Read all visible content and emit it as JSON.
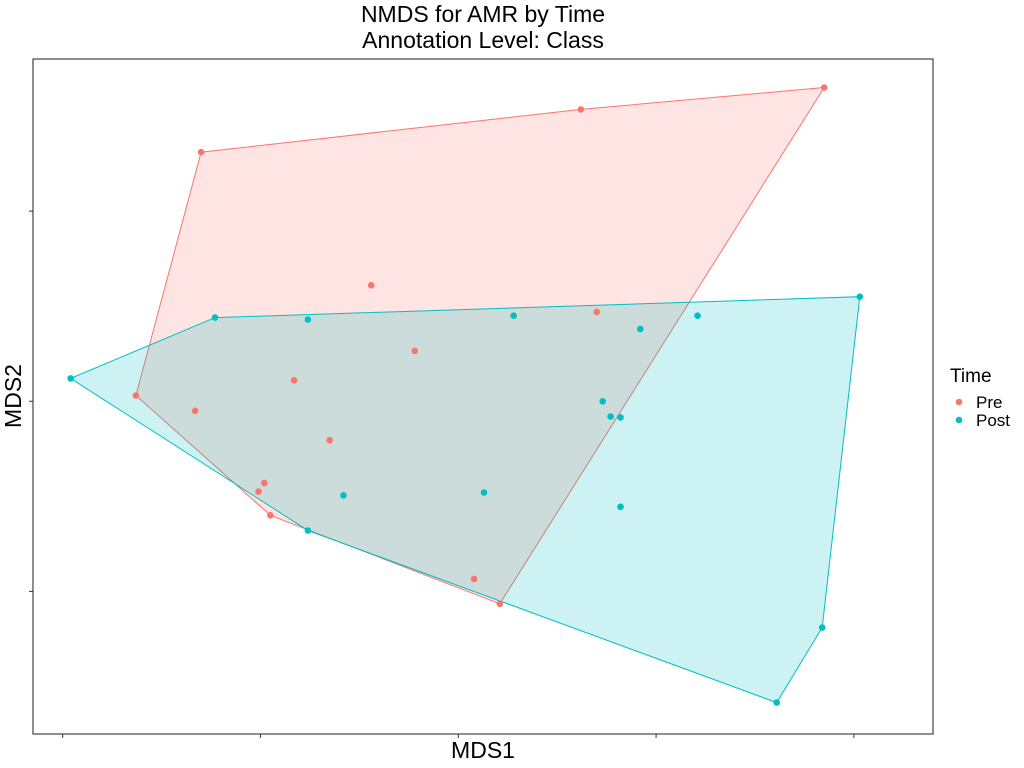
{
  "chart_data": {
    "type": "scatter",
    "title": "NMDS for AMR by Time",
    "subtitle": "Annotation Level: Class",
    "xlabel": "MDS1",
    "ylabel": "MDS2",
    "xlim": [
      -0.045,
      0.41
    ],
    "ylim": [
      -0.35,
      0.36
    ],
    "x_ticks": [
      -0.03,
      0.07,
      0.17,
      0.27,
      0.37
    ],
    "y_ticks": [
      -0.2,
      0.0,
      0.2
    ],
    "tick_labels_shown": false,
    "grid": false,
    "legend": {
      "title": "Time",
      "position": "right"
    },
    "series": [
      {
        "name": "Pre",
        "color": "#F8766D",
        "hull": true,
        "points": [
          [
            0.355,
            0.33
          ],
          [
            0.232,
            0.307
          ],
          [
            0.04,
            0.262
          ],
          [
            0.126,
            0.122
          ],
          [
            0.24,
            0.094
          ],
          [
            0.007,
            0.006
          ],
          [
            0.148,
            0.053
          ],
          [
            0.087,
            0.022
          ],
          [
            0.037,
            -0.01
          ],
          [
            0.105,
            -0.041
          ],
          [
            0.072,
            -0.086
          ],
          [
            0.069,
            -0.095
          ],
          [
            0.075,
            -0.12
          ],
          [
            0.178,
            -0.187
          ],
          [
            0.191,
            -0.213
          ]
        ]
      },
      {
        "name": "Post",
        "color": "#00BFC4",
        "hull": true,
        "points": [
          [
            0.373,
            0.11
          ],
          [
            0.047,
            0.088
          ],
          [
            0.094,
            0.086
          ],
          [
            0.198,
            0.09
          ],
          [
            0.262,
            0.076
          ],
          [
            0.291,
            0.09
          ],
          [
            -0.026,
            0.024
          ],
          [
            0.243,
            0.0
          ],
          [
            0.247,
            -0.016
          ],
          [
            0.252,
            -0.017
          ],
          [
            0.112,
            -0.099
          ],
          [
            0.183,
            -0.096
          ],
          [
            0.252,
            -0.111
          ],
          [
            0.094,
            -0.136
          ],
          [
            0.354,
            -0.238
          ],
          [
            0.331,
            -0.317
          ]
        ]
      }
    ]
  }
}
